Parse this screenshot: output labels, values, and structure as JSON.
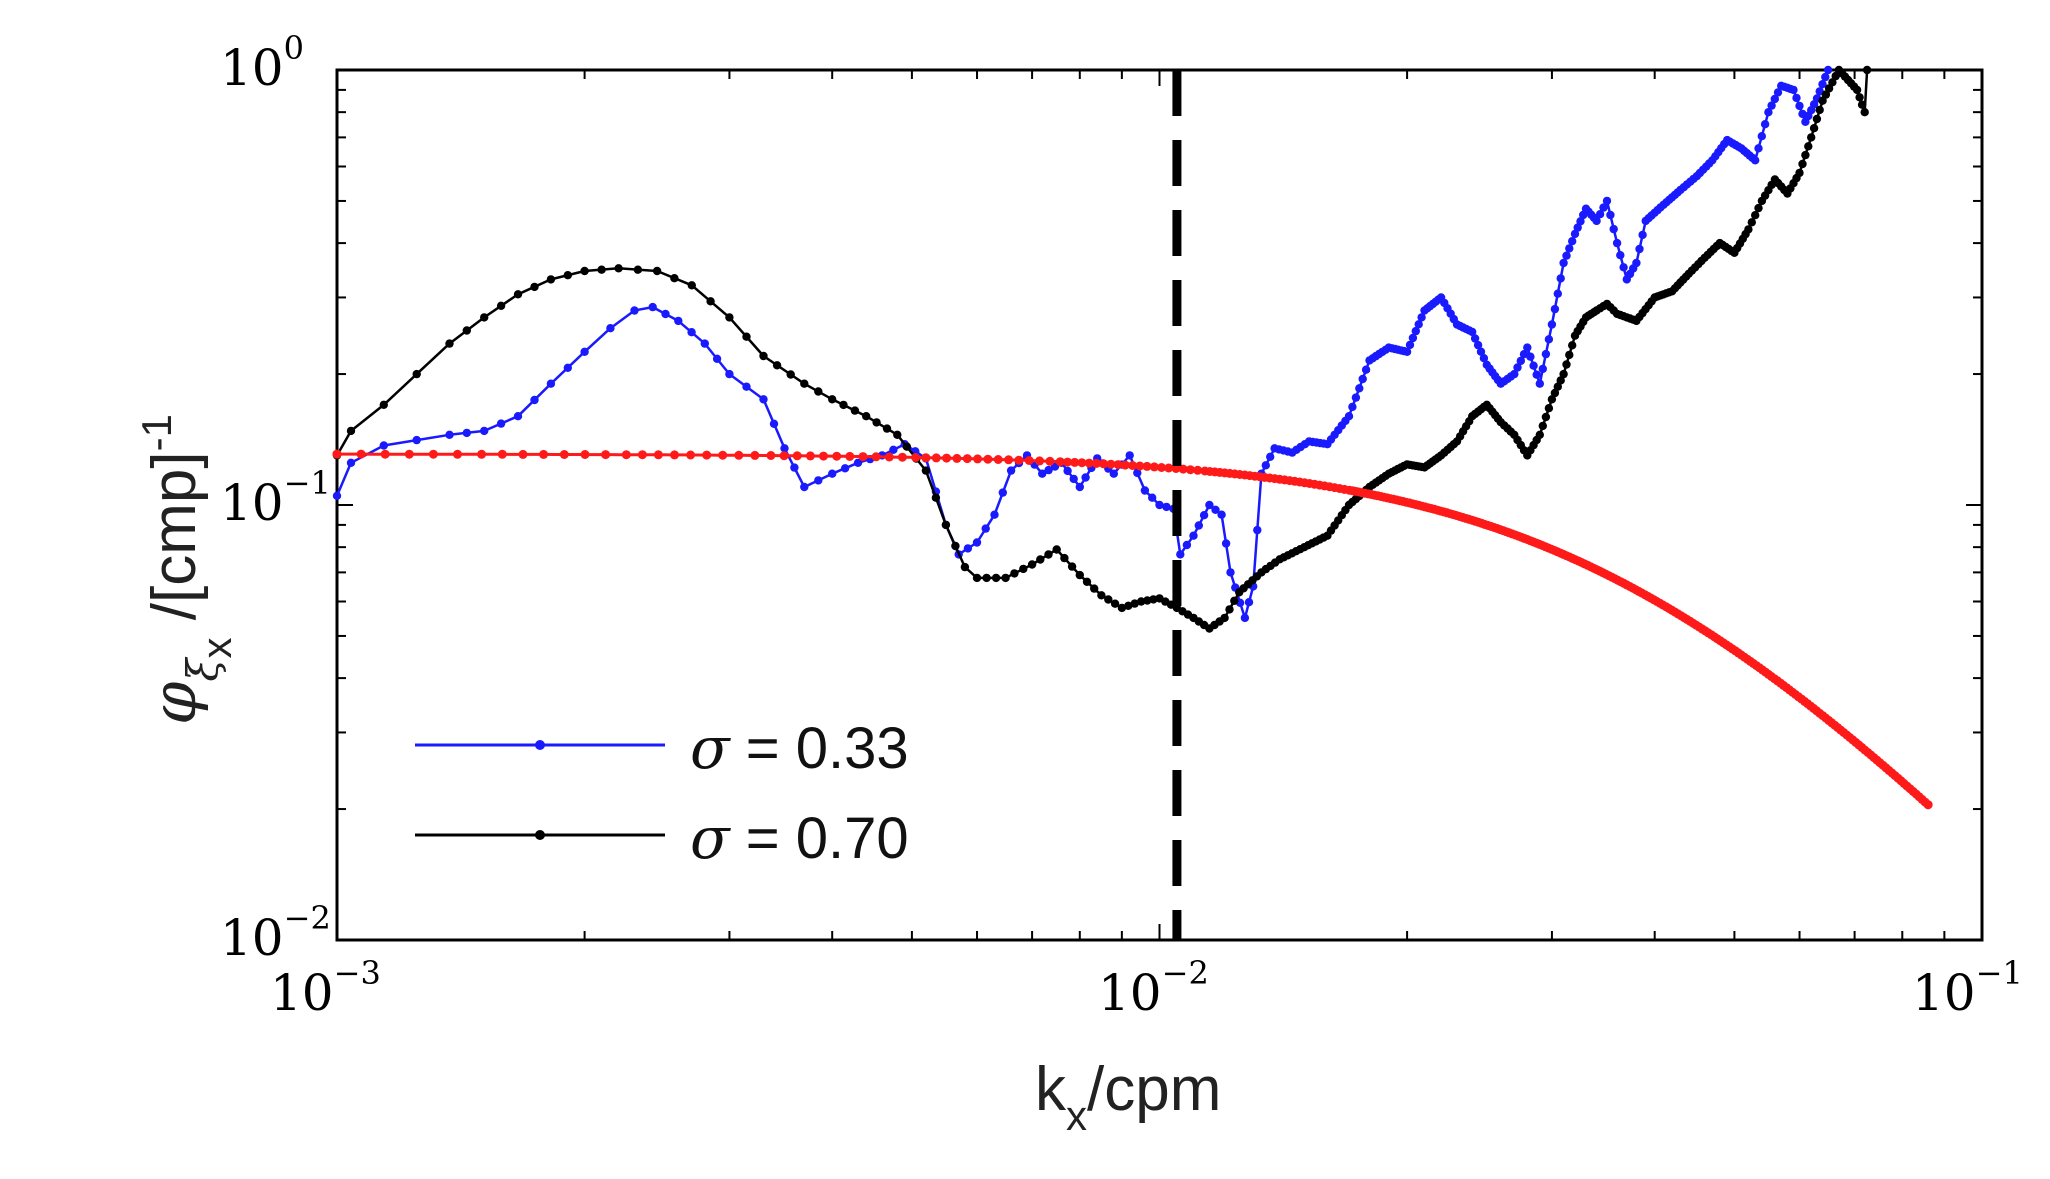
{
  "chart_data": {
    "type": "line",
    "title": "",
    "xscale": "log",
    "yscale": "log",
    "xlim": [
      0.001,
      0.1
    ],
    "ylim": [
      0.01,
      1
    ],
    "xlabel": {
      "main": "k",
      "sub": "x",
      "rest": "/cpm"
    },
    "ylabel": {
      "phi": "φ",
      "sub1": "ξ",
      "sub2": "x",
      "rest": " /[cmp]",
      "exp": "-1"
    },
    "x_ticks": [
      {
        "base": "10",
        "exp": "−3",
        "value": 0.001
      },
      {
        "base": "10",
        "exp": "−2",
        "value": 0.01
      },
      {
        "base": "10",
        "exp": "−1",
        "value": 0.1
      }
    ],
    "y_ticks": [
      {
        "base": "10",
        "exp": "−2",
        "value": 0.01
      },
      {
        "base": "10",
        "exp": "−1",
        "value": 0.1
      },
      {
        "base": "10",
        "exp": "0",
        "value": 1
      }
    ],
    "grid": false,
    "legend_position": "bottom-left",
    "vline": {
      "x": 0.0105,
      "style": "dashed",
      "color": "#000000"
    },
    "series": [
      {
        "legend_symbol": "σ",
        "legend_value": " = 0.33",
        "color": "#1a1aff",
        "points": [
          [
            0.001,
            0.105
          ],
          [
            0.00104,
            0.125
          ],
          [
            0.00114,
            0.137
          ],
          [
            0.00125,
            0.141
          ],
          [
            0.00137,
            0.145
          ],
          [
            0.00151,
            0.148
          ],
          [
            0.00166,
            0.16
          ],
          [
            0.00182,
            0.19
          ],
          [
            0.002,
            0.225
          ],
          [
            0.00215,
            0.255
          ],
          [
            0.0023,
            0.28
          ],
          [
            0.00242,
            0.285
          ],
          [
            0.0026,
            0.265
          ],
          [
            0.0028,
            0.235
          ],
          [
            0.003,
            0.2
          ],
          [
            0.0033,
            0.175
          ],
          [
            0.0035,
            0.135
          ],
          [
            0.0037,
            0.11
          ],
          [
            0.004,
            0.118
          ],
          [
            0.0043,
            0.125
          ],
          [
            0.0046,
            0.13
          ],
          [
            0.0049,
            0.138
          ],
          [
            0.0052,
            0.128
          ],
          [
            0.0055,
            0.09
          ],
          [
            0.0057,
            0.077
          ],
          [
            0.006,
            0.082
          ],
          [
            0.0063,
            0.095
          ],
          [
            0.0066,
            0.12
          ],
          [
            0.0069,
            0.13
          ],
          [
            0.0072,
            0.118
          ],
          [
            0.0076,
            0.125
          ],
          [
            0.008,
            0.11
          ],
          [
            0.0084,
            0.128
          ],
          [
            0.0088,
            0.118
          ],
          [
            0.0092,
            0.13
          ],
          [
            0.0096,
            0.108
          ],
          [
            0.01,
            0.1
          ],
          [
            0.0104,
            0.098
          ],
          [
            0.0106,
            0.077
          ],
          [
            0.011,
            0.085
          ],
          [
            0.0115,
            0.1
          ],
          [
            0.0119,
            0.095
          ],
          [
            0.0122,
            0.07
          ],
          [
            0.0127,
            0.055
          ],
          [
            0.013,
            0.065
          ],
          [
            0.0133,
            0.118
          ],
          [
            0.0138,
            0.135
          ],
          [
            0.0145,
            0.132
          ],
          [
            0.0152,
            0.14
          ],
          [
            0.016,
            0.138
          ],
          [
            0.017,
            0.16
          ],
          [
            0.018,
            0.215
          ],
          [
            0.019,
            0.23
          ],
          [
            0.02,
            0.225
          ],
          [
            0.021,
            0.28
          ],
          [
            0.022,
            0.3
          ],
          [
            0.023,
            0.26
          ],
          [
            0.024,
            0.25
          ],
          [
            0.025,
            0.21
          ],
          [
            0.026,
            0.19
          ],
          [
            0.027,
            0.2
          ],
          [
            0.028,
            0.23
          ],
          [
            0.029,
            0.19
          ],
          [
            0.03,
            0.26
          ],
          [
            0.031,
            0.36
          ],
          [
            0.032,
            0.42
          ],
          [
            0.033,
            0.48
          ],
          [
            0.034,
            0.45
          ],
          [
            0.035,
            0.5
          ],
          [
            0.036,
            0.4
          ],
          [
            0.037,
            0.33
          ],
          [
            0.038,
            0.36
          ],
          [
            0.039,
            0.45
          ],
          [
            0.041,
            0.49
          ],
          [
            0.043,
            0.53
          ],
          [
            0.045,
            0.57
          ],
          [
            0.047,
            0.62
          ],
          [
            0.049,
            0.69
          ],
          [
            0.051,
            0.66
          ],
          [
            0.053,
            0.62
          ],
          [
            0.055,
            0.8
          ],
          [
            0.057,
            0.92
          ],
          [
            0.059,
            0.9
          ],
          [
            0.061,
            0.76
          ],
          [
            0.063,
            0.86
          ],
          [
            0.065,
            1.0
          ]
        ]
      },
      {
        "legend_symbol": "σ",
        "legend_value": " = 0.70",
        "color": "#000000",
        "points": [
          [
            0.001,
            0.13
          ],
          [
            0.00104,
            0.148
          ],
          [
            0.00114,
            0.17
          ],
          [
            0.00125,
            0.2
          ],
          [
            0.00137,
            0.235
          ],
          [
            0.00151,
            0.27
          ],
          [
            0.00166,
            0.305
          ],
          [
            0.00182,
            0.33
          ],
          [
            0.002,
            0.345
          ],
          [
            0.0022,
            0.35
          ],
          [
            0.00245,
            0.345
          ],
          [
            0.0027,
            0.32
          ],
          [
            0.003,
            0.27
          ],
          [
            0.0033,
            0.22
          ],
          [
            0.0037,
            0.19
          ],
          [
            0.004,
            0.175
          ],
          [
            0.0044,
            0.16
          ],
          [
            0.0048,
            0.145
          ],
          [
            0.0052,
            0.12
          ],
          [
            0.0055,
            0.09
          ],
          [
            0.0058,
            0.072
          ],
          [
            0.006,
            0.068
          ],
          [
            0.0065,
            0.068
          ],
          [
            0.007,
            0.073
          ],
          [
            0.0075,
            0.079
          ],
          [
            0.008,
            0.069
          ],
          [
            0.0085,
            0.062
          ],
          [
            0.009,
            0.058
          ],
          [
            0.0095,
            0.06
          ],
          [
            0.01,
            0.061
          ],
          [
            0.0105,
            0.058
          ],
          [
            0.011,
            0.055
          ],
          [
            0.0115,
            0.052
          ],
          [
            0.012,
            0.055
          ],
          [
            0.0125,
            0.063
          ],
          [
            0.0133,
            0.07
          ],
          [
            0.014,
            0.075
          ],
          [
            0.015,
            0.08
          ],
          [
            0.016,
            0.085
          ],
          [
            0.017,
            0.1
          ],
          [
            0.018,
            0.11
          ],
          [
            0.019,
            0.118
          ],
          [
            0.02,
            0.124
          ],
          [
            0.021,
            0.122
          ],
          [
            0.022,
            0.13
          ],
          [
            0.023,
            0.14
          ],
          [
            0.024,
            0.16
          ],
          [
            0.025,
            0.17
          ],
          [
            0.026,
            0.155
          ],
          [
            0.027,
            0.145
          ],
          [
            0.028,
            0.13
          ],
          [
            0.029,
            0.145
          ],
          [
            0.03,
            0.175
          ],
          [
            0.031,
            0.2
          ],
          [
            0.032,
            0.245
          ],
          [
            0.033,
            0.27
          ],
          [
            0.034,
            0.28
          ],
          [
            0.035,
            0.29
          ],
          [
            0.036,
            0.275
          ],
          [
            0.037,
            0.27
          ],
          [
            0.038,
            0.265
          ],
          [
            0.04,
            0.3
          ],
          [
            0.042,
            0.31
          ],
          [
            0.044,
            0.34
          ],
          [
            0.046,
            0.37
          ],
          [
            0.048,
            0.4
          ],
          [
            0.05,
            0.38
          ],
          [
            0.052,
            0.43
          ],
          [
            0.054,
            0.5
          ],
          [
            0.056,
            0.56
          ],
          [
            0.058,
            0.52
          ],
          [
            0.06,
            0.58
          ],
          [
            0.062,
            0.7
          ],
          [
            0.064,
            0.85
          ],
          [
            0.067,
            1.0
          ],
          [
            0.0705,
            0.9
          ],
          [
            0.072,
            0.8
          ],
          [
            0.0725,
            1.0
          ]
        ]
      },
      {
        "color": "#ff1a1a",
        "model": {
          "A": 0.131,
          "k0": 0.037
        },
        "x_range": [
          0.001,
          0.086
        ]
      }
    ]
  }
}
